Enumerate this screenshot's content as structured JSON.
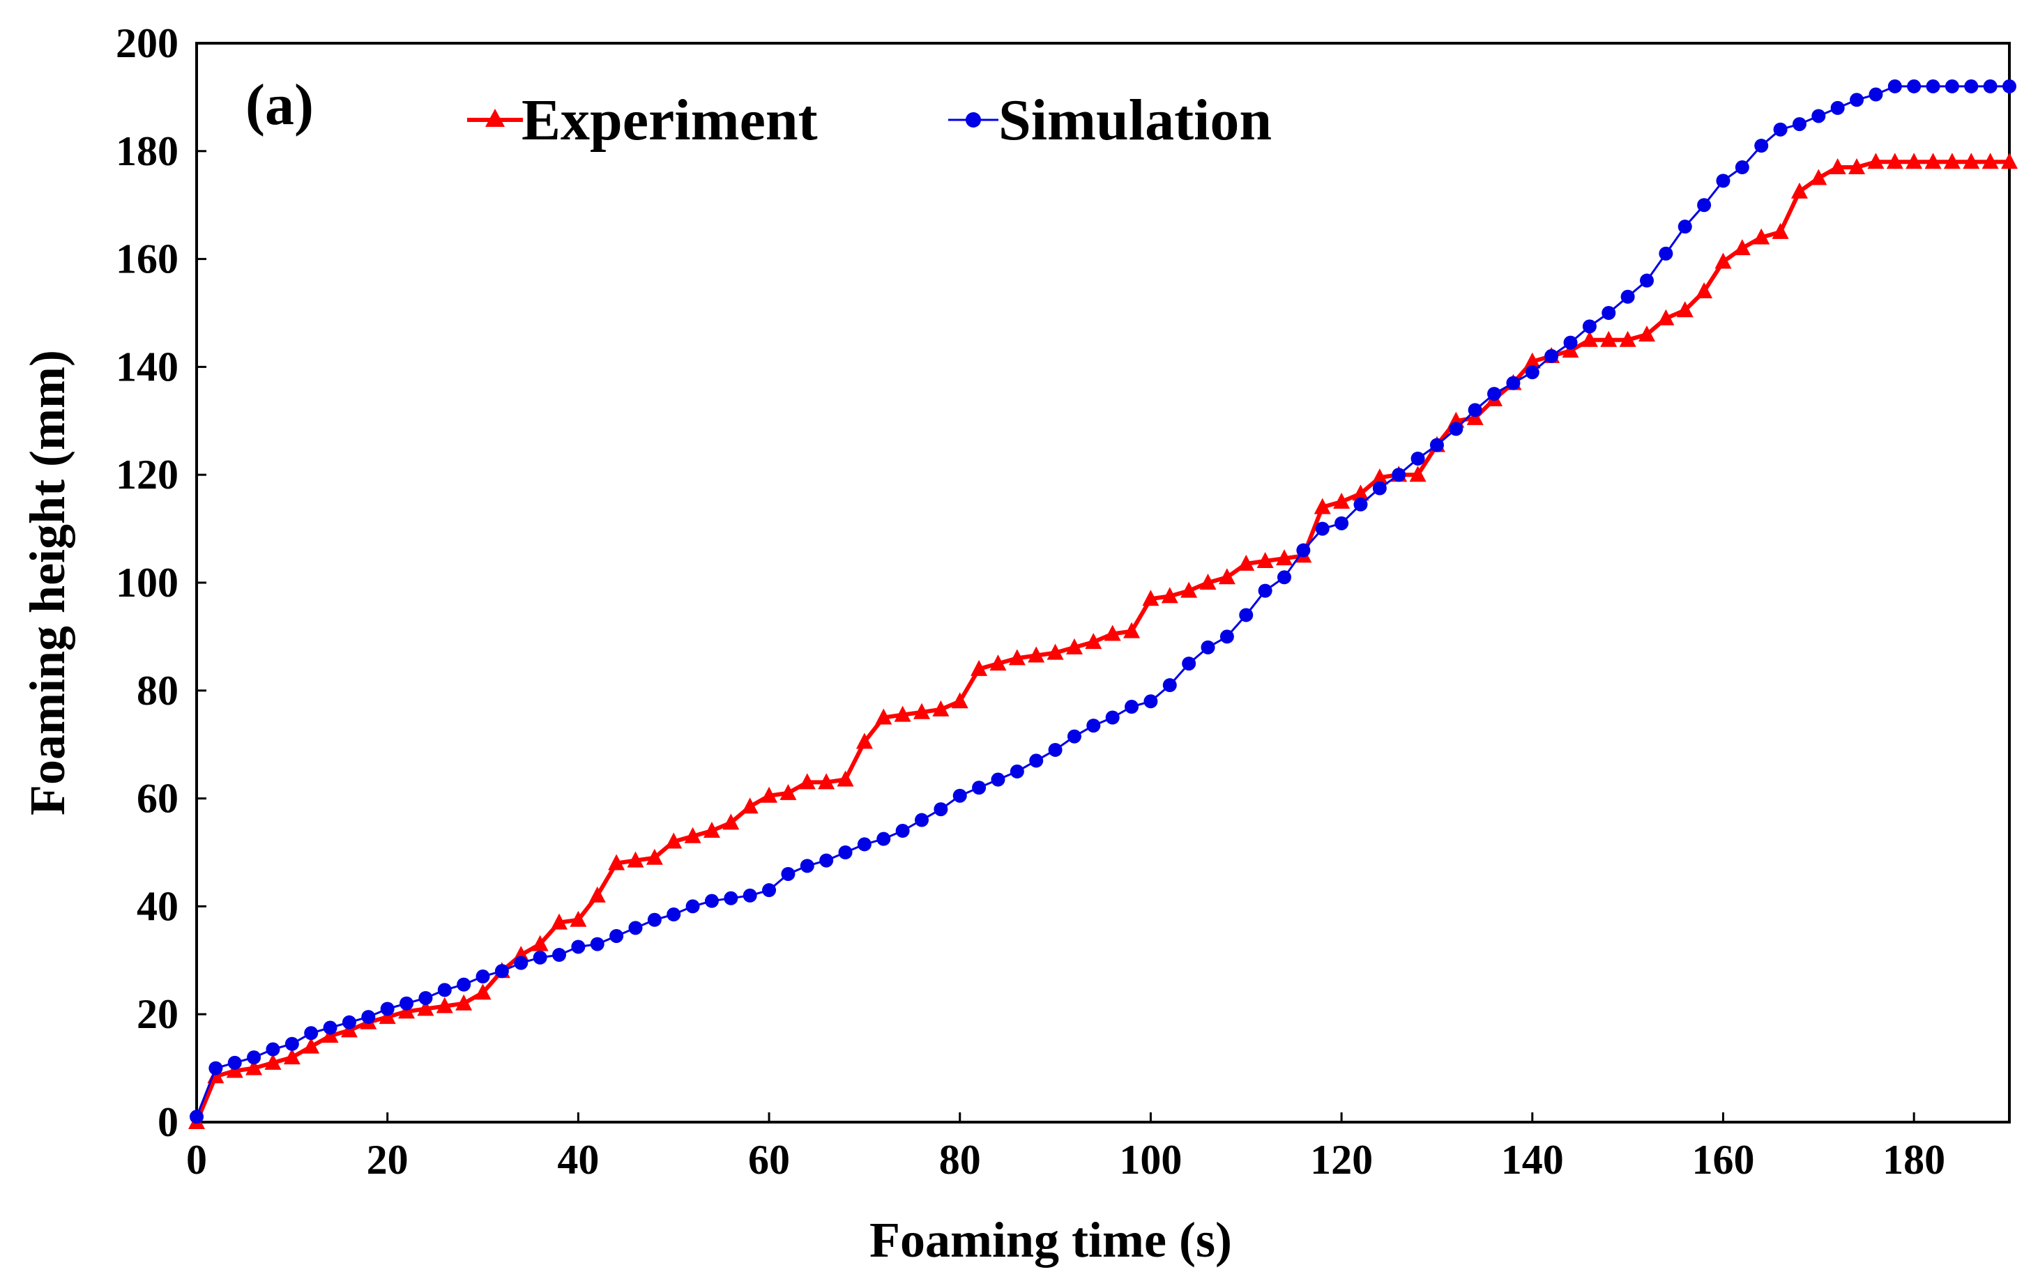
{
  "chart_data": {
    "type": "line",
    "panel_label": "(a)",
    "xlabel": "Foaming time (s)",
    "ylabel": "Foaming height (mm)",
    "xlim": [
      0,
      190
    ],
    "ylim": [
      0,
      200
    ],
    "xticks": [
      0,
      20,
      40,
      60,
      80,
      100,
      120,
      140,
      160,
      180
    ],
    "yticks": [
      0,
      20,
      40,
      60,
      80,
      100,
      120,
      140,
      160,
      180,
      200
    ],
    "grid": false,
    "legend_position": "top",
    "series": [
      {
        "name": "Experiment",
        "color": "#ff0000",
        "marker": "triangle",
        "x": [
          0,
          2,
          4,
          6,
          8,
          10,
          12,
          14,
          16,
          18,
          20,
          22,
          24,
          26,
          28,
          30,
          32,
          34,
          36,
          38,
          40,
          42,
          44,
          46,
          48,
          50,
          52,
          54,
          56,
          58,
          60,
          62,
          64,
          66,
          68,
          70,
          72,
          74,
          76,
          78,
          80,
          82,
          84,
          86,
          88,
          90,
          92,
          94,
          96,
          98,
          100,
          102,
          104,
          106,
          108,
          110,
          112,
          114,
          116,
          118,
          120,
          122,
          124,
          126,
          128,
          130,
          132,
          134,
          136,
          138,
          140,
          142,
          144,
          146,
          148,
          150,
          152,
          154,
          156,
          158,
          160,
          162,
          164,
          166,
          168,
          170,
          172,
          174,
          176,
          178,
          180,
          182,
          184,
          186,
          188,
          190
        ],
        "y": [
          0,
          8.5,
          9.5,
          10,
          11,
          12,
          14,
          16,
          17,
          18.5,
          19.5,
          20.5,
          21,
          21.5,
          22,
          24,
          28,
          31,
          33,
          37,
          37.5,
          42,
          48,
          48.5,
          49,
          52,
          53,
          54,
          55.5,
          58.5,
          60.5,
          61,
          63,
          63,
          63.5,
          70.5,
          75,
          75.5,
          76,
          76.5,
          78,
          84,
          85,
          86,
          86.5,
          87,
          88,
          89,
          90.5,
          91,
          97,
          97.5,
          98.5,
          100,
          101,
          103.5,
          104,
          104.5,
          105,
          114,
          115,
          116.5,
          119.5,
          120,
          120,
          125.5,
          130,
          130.5,
          134,
          137,
          141,
          142,
          143,
          145,
          145,
          145,
          146,
          149,
          150.5,
          154,
          159.5,
          162,
          164,
          165,
          172.5,
          175,
          177,
          177,
          178,
          178,
          178,
          178,
          178,
          178,
          178,
          178
        ]
      },
      {
        "name": "Simulation",
        "color": "#0000e6",
        "marker": "circle",
        "x": [
          0,
          2,
          4,
          6,
          8,
          10,
          12,
          14,
          16,
          18,
          20,
          22,
          24,
          26,
          28,
          30,
          32,
          34,
          36,
          38,
          40,
          42,
          44,
          46,
          48,
          50,
          52,
          54,
          56,
          58,
          60,
          62,
          64,
          66,
          68,
          70,
          72,
          74,
          76,
          78,
          80,
          82,
          84,
          86,
          88,
          90,
          92,
          94,
          96,
          98,
          100,
          102,
          104,
          106,
          108,
          110,
          112,
          114,
          116,
          118,
          120,
          122,
          124,
          126,
          128,
          130,
          132,
          134,
          136,
          138,
          140,
          142,
          144,
          146,
          148,
          150,
          152,
          154,
          156,
          158,
          160,
          162,
          164,
          166,
          168,
          170,
          172,
          174,
          176,
          178,
          180,
          182,
          184,
          186,
          188,
          190
        ],
        "y": [
          1,
          10,
          11,
          12,
          13.5,
          14.5,
          16.5,
          17.5,
          18.5,
          19.5,
          21,
          22,
          23,
          24.5,
          25.5,
          27,
          28,
          29.5,
          30.5,
          31,
          32.5,
          33,
          34.5,
          36,
          37.5,
          38.5,
          40,
          41,
          41.5,
          42,
          43,
          46,
          47.5,
          48.5,
          50,
          51.5,
          52.5,
          54,
          56,
          58,
          60.5,
          62,
          63.5,
          65,
          67,
          69,
          71.5,
          73.5,
          75,
          77,
          78,
          81,
          85,
          88,
          90,
          94,
          98.5,
          101,
          106,
          110,
          111,
          114.5,
          117.5,
          120,
          123,
          125.5,
          128.5,
          132,
          135,
          137,
          139,
          142,
          144.5,
          147.5,
          150,
          153,
          156,
          161,
          166,
          170,
          174.5,
          177,
          181,
          184,
          185,
          186.5,
          188,
          189.5,
          190.5,
          192,
          192,
          192,
          192,
          192,
          192,
          192
        ]
      }
    ]
  }
}
